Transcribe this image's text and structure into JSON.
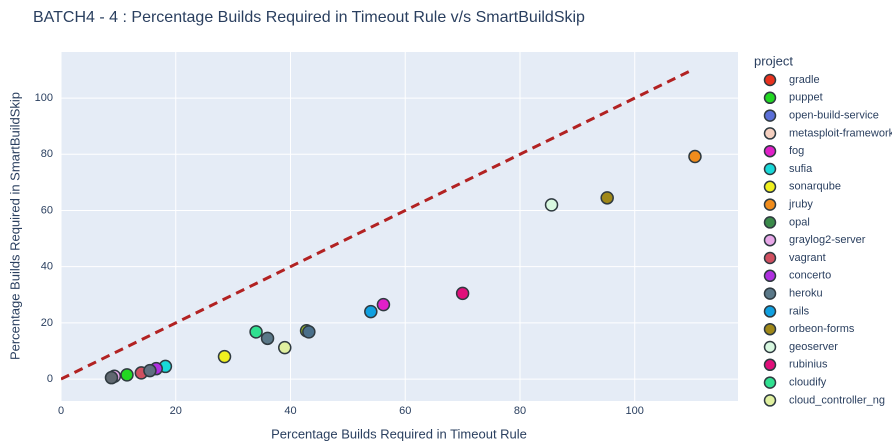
{
  "chart_data": {
    "type": "scatter",
    "title": "BATCH4 - 4 : Percentage Builds Required in Timeout Rule v/s SmartBuildSkip",
    "xlabel": "Percentage Builds Required in Timeout Rule",
    "ylabel": "Percentage Builds Required in SmartBuildSkip",
    "legend_title": "project",
    "xlim": [
      0,
      118
    ],
    "ylim": [
      -7.8,
      116.4
    ],
    "xticks": [
      0,
      20,
      40,
      60,
      80,
      100
    ],
    "yticks": [
      0,
      20,
      40,
      60,
      80,
      100
    ],
    "grid": true,
    "reference_line": {
      "x": [
        0,
        110
      ],
      "y": [
        0,
        110
      ],
      "color": "#b22222"
    },
    "series": [
      {
        "name": "gradle",
        "color": "#e8321e",
        "x": [
          null
        ],
        "y": [
          null
        ]
      },
      {
        "name": "puppet",
        "color": "#22d822",
        "x": [
          11.5
        ],
        "y": [
          1.5
        ]
      },
      {
        "name": "open-build-service",
        "color": "#5b6fd8",
        "x": [
          null
        ],
        "y": [
          null
        ]
      },
      {
        "name": "metasploit-framework",
        "color": "#f5d0c0",
        "x": [
          null
        ],
        "y": [
          null
        ]
      },
      {
        "name": "fog",
        "color": "#e020c8",
        "x": [
          56.2
        ],
        "y": [
          26.5
        ]
      },
      {
        "name": "sufia",
        "color": "#18d8d8",
        "x": [
          18.2
        ],
        "y": [
          4.5
        ]
      },
      {
        "name": "sonarqube",
        "color": "#f0f020",
        "x": [
          28.5
        ],
        "y": [
          8
        ]
      },
      {
        "name": "jruby",
        "color": "#f08c1c",
        "x": [
          110.5
        ],
        "y": [
          79.2
        ]
      },
      {
        "name": "opal",
        "color": "#3a8a4a",
        "x": [
          null
        ],
        "y": [
          null
        ]
      },
      {
        "name": "graylog2-server",
        "color": "#e8a8e8",
        "x": [
          9.3
        ],
        "y": [
          1
        ]
      },
      {
        "name": "vagrant",
        "color": "#d05060",
        "x": [
          14
        ],
        "y": [
          2.2
        ]
      },
      {
        "name": "concerto",
        "color": "#b030e0",
        "x": [
          16.6
        ],
        "y": [
          3.7
        ]
      },
      {
        "name": "heroku",
        "color": "#5a7888",
        "x": [
          36
        ],
        "y": [
          14.5
        ]
      },
      {
        "name": "rails",
        "color": "#10a0e0",
        "x": [
          54
        ],
        "y": [
          24
        ]
      },
      {
        "name": "orbeon-forms",
        "color": "#a08818",
        "x": [
          95.2
        ],
        "y": [
          64.5
        ]
      },
      {
        "name": "geoserver",
        "color": "#d8f8e0",
        "x": [
          85.5
        ],
        "y": [
          62
        ]
      },
      {
        "name": "rubinius",
        "color": "#e0107a",
        "x": [
          70
        ],
        "y": [
          30.5
        ]
      },
      {
        "name": "cloudify",
        "color": "#30e090",
        "x": [
          34
        ],
        "y": [
          16.8
        ]
      },
      {
        "name": "cloud_controller_ng",
        "color": "#e0f0a0",
        "x": [
          39
        ],
        "y": [
          11.2
        ]
      },
      {
        "color": "#a0c020",
        "x": [
          42.8
        ],
        "y": [
          17.2
        ]
      },
      {
        "color": "#4a6f8a",
        "x": [
          43.2
        ],
        "y": [
          16.8
        ]
      },
      {
        "color": "#606870",
        "x": [
          8.8
        ],
        "y": [
          0.5
        ]
      },
      {
        "color": "#607080",
        "x": [
          15.5
        ],
        "y": [
          3
        ]
      }
    ]
  }
}
